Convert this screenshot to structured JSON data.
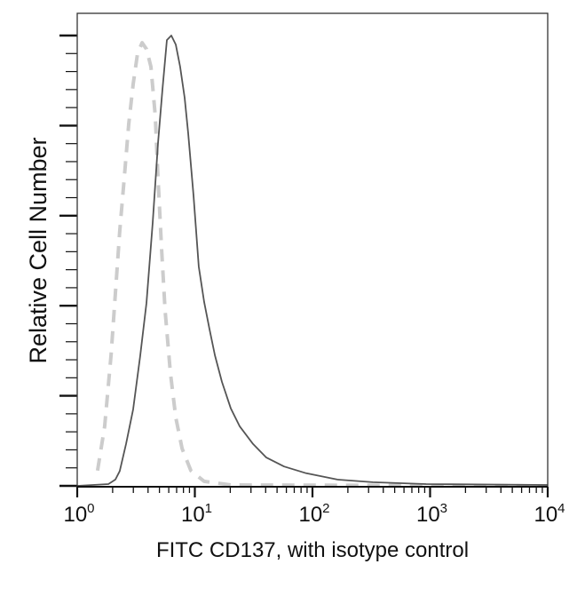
{
  "chart_data": {
    "type": "line",
    "title": "",
    "xlabel": "FITC CD137, with isotype control",
    "ylabel": "Relative Cell Number",
    "x_scale": "log",
    "xlim": [
      1,
      10000
    ],
    "ylim": [
      0,
      105
    ],
    "x_tick_labels": [
      {
        "base": "10",
        "exp": "0"
      },
      {
        "base": "10",
        "exp": "1"
      },
      {
        "base": "10",
        "exp": "2"
      },
      {
        "base": "10",
        "exp": "3"
      },
      {
        "base": "10",
        "exp": "4"
      }
    ],
    "y_tick_labels_shown": false,
    "grid": false,
    "legend": "none",
    "series": [
      {
        "style": "solid",
        "color": "#555555",
        "x": [
          1,
          1.84,
          2.11,
          2.3,
          2.6,
          2.99,
          3.43,
          3.88,
          4.38,
          4.86,
          5.3,
          5.78,
          6.31,
          6.88,
          7.5,
          8.19,
          8.78,
          9.74,
          10.8,
          12.0,
          13.3,
          14.8,
          17.0,
          20.2,
          24.1,
          31.2,
          40.5,
          57.3,
          88.5,
          163,
          326,
          925,
          10000
        ],
        "y": [
          0,
          0.4,
          1.4,
          3.3,
          9.3,
          17.0,
          28.8,
          40.6,
          58.4,
          76.1,
          88.0,
          99.0,
          100,
          98.0,
          93.1,
          86.2,
          78.3,
          64.5,
          48.7,
          40.8,
          34.9,
          29.0,
          23.1,
          17.2,
          13.2,
          9.3,
          6.3,
          4.3,
          2.8,
          1.4,
          0.8,
          0.4,
          0.2
        ]
      },
      {
        "style": "dashed",
        "color": "#cccccc",
        "x": [
          1.49,
          1.71,
          1.94,
          2.11,
          2.3,
          2.51,
          2.74,
          2.99,
          3.26,
          3.56,
          3.88,
          4.23,
          4.61,
          4.86,
          5.21,
          5.59,
          6.2,
          6.88,
          7.78,
          9.25,
          12.0,
          20.2,
          10000
        ],
        "y": [
          3.4,
          13.2,
          29.0,
          42.8,
          56.6,
          68.4,
          80.3,
          89.2,
          96.1,
          98.4,
          97.0,
          93.1,
          82.2,
          68.4,
          52.7,
          38.9,
          25.0,
          15.2,
          8.3,
          3.4,
          1.0,
          0.2,
          0
        ]
      }
    ]
  }
}
